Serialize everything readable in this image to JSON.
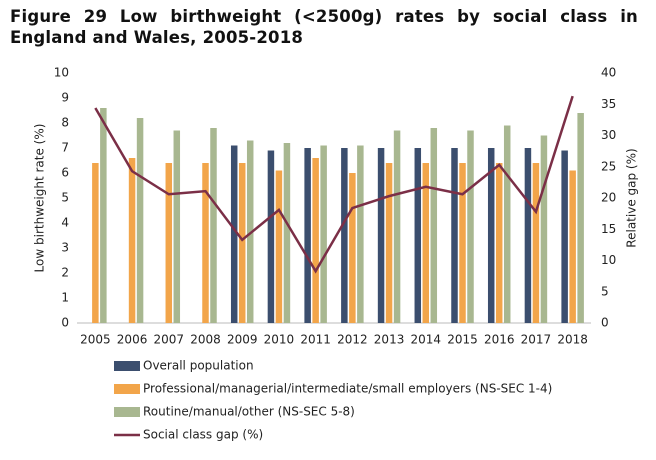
{
  "chart_data": {
    "type": "bar",
    "title": "Figure 29 Low birthweight (<2500g) rates by social class in England and Wales, 2005-2018",
    "categories": [
      "2005",
      "2006",
      "2007",
      "2008",
      "2009",
      "2010",
      "2011",
      "2012",
      "2013",
      "2014",
      "2015",
      "2016",
      "2017",
      "2018"
    ],
    "y_label": "Low birthweight rate (%)",
    "y2_label": "Relative gap (%)",
    "ylim": [
      0,
      10
    ],
    "yticks": [
      0,
      1,
      2,
      3,
      4,
      5,
      6,
      7,
      8,
      9,
      10
    ],
    "y2lim": [
      0,
      40
    ],
    "y2ticks": [
      0,
      5,
      10,
      15,
      20,
      25,
      30,
      35,
      40
    ],
    "series": [
      {
        "name": "Overall population",
        "color": "#3b4e6e",
        "type": "bar",
        "values": [
          null,
          null,
          null,
          null,
          7.1,
          6.9,
          7.0,
          7.0,
          7.0,
          7.0,
          7.0,
          7.0,
          7.0,
          6.9
        ]
      },
      {
        "name": "Professional/managerial/intermediate/small employers (NS-SEC 1-4)",
        "color": "#f2a54a",
        "type": "bar",
        "values": [
          6.4,
          6.6,
          6.4,
          6.4,
          6.4,
          6.1,
          6.6,
          6.0,
          6.4,
          6.4,
          6.4,
          6.4,
          6.4,
          6.1
        ]
      },
      {
        "name": "Routine/manual/other (NS-SEC 5-8)",
        "color": "#a8b790",
        "type": "bar",
        "values": [
          8.6,
          8.2,
          7.7,
          7.8,
          7.3,
          7.2,
          7.1,
          7.1,
          7.7,
          7.8,
          7.7,
          7.9,
          7.5,
          8.4
        ]
      },
      {
        "name": "Social class gap (%)",
        "color": "#7b2f47",
        "type": "line",
        "axis": "y2",
        "values": [
          34.4,
          24.3,
          20.6,
          21.1,
          13.3,
          18.1,
          8.3,
          18.4,
          20.3,
          21.8,
          20.6,
          25.3,
          17.8,
          36.3
        ]
      }
    ]
  }
}
